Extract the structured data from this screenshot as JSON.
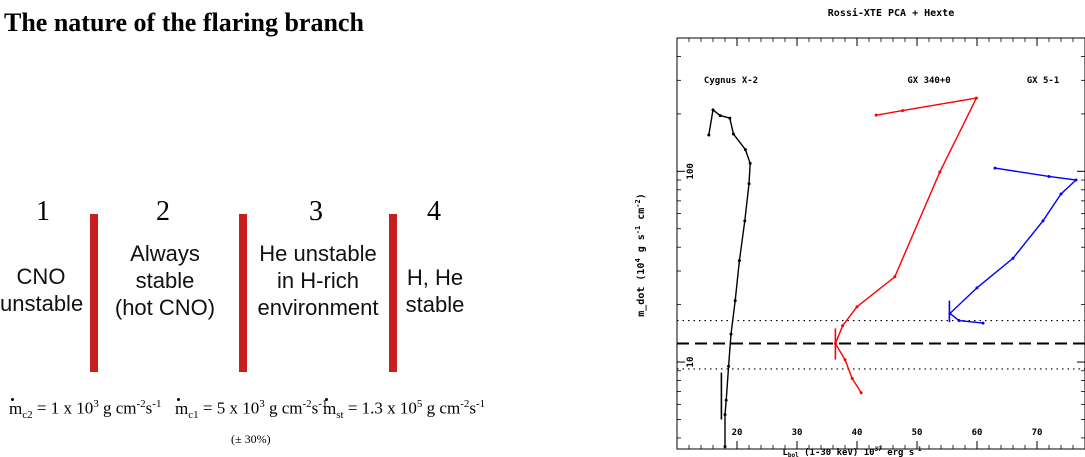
{
  "left_panel": {
    "title": "The nature of the flaring branch",
    "regimes": [
      {
        "number": "1",
        "lines": [
          "CNO",
          "unstable"
        ]
      },
      {
        "number": "2",
        "lines": [
          "Always",
          "stable",
          "(hot CNO)"
        ]
      },
      {
        "number": "3",
        "lines": [
          "He unstable",
          "in H-rich",
          "environment"
        ]
      },
      {
        "number": "4",
        "lines": [
          "H, He",
          "stable"
        ]
      }
    ],
    "bar_color": "#c81e1e",
    "thresholds": [
      {
        "symbol": "m",
        "sub": "c2",
        "mantissa": "= 1 x 10",
        "exp": "3",
        "unit_a": " g cm",
        "unit_a_exp": "-2",
        "unit_b": "s",
        "unit_b_exp": "-1"
      },
      {
        "symbol": "m",
        "sub": "c1",
        "mantissa": "= 5 x 10",
        "exp": "3",
        "unit_a": " g cm",
        "unit_a_exp": "-2",
        "unit_b": "s",
        "unit_b_exp": "-1"
      },
      {
        "symbol": "m",
        "sub": "st",
        "mantissa": "= 1.3 x 10",
        "exp": "5",
        "unit_a": " g cm",
        "unit_a_exp": "-2",
        "unit_b": "s",
        "unit_b_exp": "-1"
      }
    ],
    "uncertainty": "(± 30%)"
  },
  "chart_data": {
    "type": "line",
    "title": "Rossi-XTE PCA + Hexte",
    "xlabel": "L",
    "xlabel_sub": "bol",
    "xlabel_rest": " (1-30 keV) 10",
    "xlabel_exp": "37",
    "xlabel_tail": " erg s",
    "xlabel_tail_exp": "-1",
    "ylabel": "m_dot (10",
    "ylabel_exp": "4",
    "ylabel_mid": " g s",
    "ylabel_mid_exp": "-1",
    "ylabel_tail": " cm",
    "ylabel_tail_exp": "-2",
    "ylabel_close": ")",
    "xlim": [
      10,
      78
    ],
    "ylim": [
      3.5,
      500
    ],
    "yscale": "log",
    "x_ticks": [
      20,
      30,
      40,
      50,
      60,
      70
    ],
    "y_ticks": [
      10,
      100
    ],
    "horizontal_lines": [
      {
        "y": 16.5,
        "style": "dotted"
      },
      {
        "y": 12.5,
        "style": "dashed"
      },
      {
        "y": 9.2,
        "style": "dotted"
      }
    ],
    "series": [
      {
        "name": "Cygnus X-2",
        "color": "#000000",
        "x": [
          18.0,
          18.0,
          18.2,
          18.6,
          19.0,
          19.7,
          20.4,
          21.3,
          22.0,
          22.2,
          21.4,
          19.4,
          18.8,
          17.2,
          16.0,
          15.3
        ],
        "y": [
          3.6,
          5.3,
          6.3,
          9.5,
          14.0,
          21.0,
          34.0,
          55.0,
          86.0,
          110.0,
          130.0,
          157.0,
          190.0,
          196.0,
          210.0,
          155.0
        ],
        "bar": {
          "x": 17.4,
          "y_low": 5.0,
          "y_high": 8.8
        },
        "label_x": 19.0,
        "label_y": 290
      },
      {
        "name": "GX 340+0",
        "color": "#ff0000",
        "x": [
          40.7,
          39.2,
          38.0,
          36.4,
          37.6,
          40.0,
          46.3,
          53.8,
          59.9,
          47.6,
          43.2
        ],
        "y": [
          6.9,
          8.2,
          10.3,
          12.5,
          15.5,
          19.5,
          28.0,
          99.0,
          242.0,
          208.0,
          197.0
        ],
        "bar": {
          "x": 36.4,
          "y_low": 10.3,
          "y_high": 15.0
        },
        "label_x": 52.0,
        "label_y": 290
      },
      {
        "name": "GX 5-1",
        "color": "#0000ff",
        "x": [
          61.0,
          57.0,
          55.5,
          60.0,
          66.0,
          71.0,
          74.0,
          76.5,
          72.0,
          63.0
        ],
        "y": [
          16.0,
          16.5,
          18.0,
          24.5,
          35.0,
          55.0,
          76.0,
          90.0,
          94.0,
          104.0
        ],
        "bar": {
          "x": 55.4,
          "y_low": 16.2,
          "y_high": 21.0
        },
        "label_x": 71.0,
        "label_y": 290
      }
    ]
  }
}
